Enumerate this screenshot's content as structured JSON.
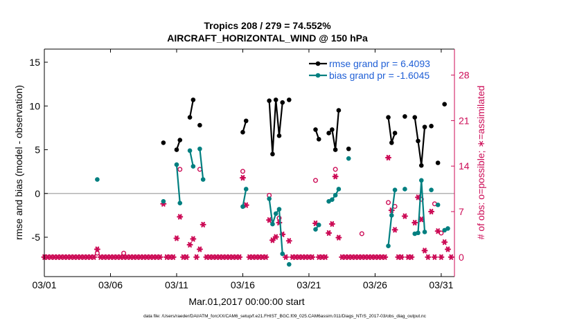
{
  "chart_data": {
    "type": "line",
    "title": "Tropics 208 / 279 = 74.552%",
    "subtitle": "AIRCRAFT_HORIZONTAL_WIND @ 150 hPa",
    "xlabel": "Mar.01,2017 00:00:00 start",
    "ylabel": "rmse and bias (model - observation)",
    "y2label": "# of obs: o=possible; ∗=assimilated",
    "footer": "data file: /Users/raeder/DAI/ATM_forcXX/CAM6_setup/f.e21.FHIST_BGC.f09_025.CAM6assim.011/Diags_NTrS_2017-03/obs_diag_output.nc",
    "xlim": [
      1,
      32
    ],
    "ylim": [
      -9.5,
      16.5
    ],
    "y2lim": [
      -3,
      32
    ],
    "grid": false,
    "legend_position": "top-right",
    "x_ticks": [
      {
        "value": 1,
        "label": "03/01"
      },
      {
        "value": 6,
        "label": "03/06"
      },
      {
        "value": 11,
        "label": "03/11"
      },
      {
        "value": 16,
        "label": "03/16"
      },
      {
        "value": 21,
        "label": "03/21"
      },
      {
        "value": 26,
        "label": "03/26"
      },
      {
        "value": 31,
        "label": "03/31"
      }
    ],
    "y_ticks": [
      {
        "value": 15,
        "label": "15"
      },
      {
        "value": 10,
        "label": "10"
      },
      {
        "value": 5,
        "label": "5"
      },
      {
        "value": 0,
        "label": "0"
      },
      {
        "value": -5,
        "label": "-5"
      }
    ],
    "y2_ticks": [
      {
        "value": 28,
        "label": "28"
      },
      {
        "value": 21,
        "label": "21"
      },
      {
        "value": 14,
        "label": "14"
      },
      {
        "value": 7,
        "label": "7"
      },
      {
        "value": 0,
        "label": "0"
      }
    ],
    "colors": {
      "rmse": "#000000",
      "bias": "#007f80",
      "obs": "#cc0a55",
      "zero_line": "#b3b3b3",
      "legend_text": "#1f5fd6"
    },
    "series": [
      {
        "name": "rmse grand pr = 6.4093",
        "axis": "left",
        "segments": [
          [
            [
              10.0,
              5.8
            ]
          ],
          [
            [
              11.0,
              5.0
            ],
            [
              11.25,
              6.1
            ]
          ],
          [
            [
              12.0,
              8.7
            ],
            [
              12.25,
              10.7
            ]
          ],
          [
            [
              12.75,
              7.8
            ]
          ],
          [
            [
              16.0,
              7.0
            ],
            [
              16.25,
              8.3
            ]
          ],
          [
            [
              18.0,
              10.6
            ],
            [
              18.25,
              4.5
            ],
            [
              18.5,
              10.7
            ],
            [
              18.75,
              6.6
            ],
            [
              19.0,
              10.4
            ]
          ],
          [
            [
              19.5,
              10.7
            ]
          ],
          [
            [
              21.5,
              7.3
            ],
            [
              21.75,
              6.2
            ]
          ],
          [
            [
              22.5,
              6.9
            ],
            [
              22.75,
              7.3
            ],
            [
              23.0,
              5.0
            ],
            [
              23.25,
              9.5
            ]
          ],
          [
            [
              24.0,
              5.1
            ]
          ],
          [
            [
              27.0,
              8.7
            ],
            [
              27.25,
              5.8
            ],
            [
              27.5,
              6.9
            ]
          ],
          [
            [
              28.25,
              8.8
            ]
          ],
          [
            [
              29.0,
              8.7
            ],
            [
              29.25,
              6.0
            ],
            [
              29.5,
              3.2
            ],
            [
              29.75,
              7.6
            ]
          ],
          [
            [
              30.25,
              7.7
            ]
          ],
          [
            [
              30.75,
              3.5
            ]
          ],
          [
            [
              31.25,
              10.2
            ]
          ]
        ]
      },
      {
        "name": "bias grand pr = -1.6045",
        "axis": "left",
        "segments": [
          [
            [
              5.0,
              1.6
            ]
          ],
          [
            [
              10.0,
              -0.9
            ]
          ],
          [
            [
              11.0,
              3.3
            ],
            [
              11.25,
              -1.1
            ]
          ],
          [
            [
              12.0,
              4.9
            ],
            [
              12.25,
              3.1
            ]
          ],
          [
            [
              12.75,
              5.1
            ],
            [
              13.0,
              1.6
            ]
          ],
          [
            [
              16.0,
              -1.5
            ],
            [
              16.25,
              0.5
            ]
          ],
          [
            [
              18.0,
              -0.6
            ],
            [
              18.25,
              -3.5
            ],
            [
              18.5,
              -2.3
            ],
            [
              18.75,
              -1.8
            ],
            [
              19.0,
              -6.9
            ]
          ],
          [
            [
              19.5,
              -8.1
            ]
          ],
          [
            [
              21.5,
              -4.1
            ],
            [
              21.75,
              -3.6
            ]
          ],
          [
            [
              22.5,
              -0.9
            ],
            [
              22.75,
              -0.7
            ],
            [
              23.0,
              -0.2
            ],
            [
              23.25,
              0.5
            ]
          ],
          [
            [
              24.0,
              4.0
            ]
          ],
          [
            [
              27.0,
              -6.0
            ],
            [
              27.25,
              -2.5
            ],
            [
              27.5,
              0.4
            ]
          ],
          [
            [
              28.25,
              0.5
            ]
          ],
          [
            [
              29.0,
              -4.6
            ],
            [
              29.25,
              -4.5
            ],
            [
              29.5,
              1.5
            ],
            [
              29.75,
              -4.4
            ]
          ],
          [
            [
              30.25,
              0.4
            ]
          ],
          [
            [
              30.75,
              -1.3
            ]
          ],
          [
            [
              31.25,
              -4.2
            ],
            [
              31.5,
              -4.0
            ]
          ]
        ]
      },
      {
        "name": "possible",
        "axis": "right",
        "marker": "o",
        "points": [
          [
            5.0,
            0.6
          ],
          [
            7.0,
            0.6
          ],
          [
            11.25,
            13.5
          ],
          [
            12.75,
            13.5
          ],
          [
            16.0,
            13.2
          ],
          [
            18.0,
            9.5
          ],
          [
            18.75,
            6.0
          ],
          [
            21.5,
            11.8
          ],
          [
            23.0,
            13.5
          ],
          [
            25.0,
            3.6
          ],
          [
            27.0,
            8.4
          ],
          [
            27.5,
            7.8
          ],
          [
            29.5,
            8.9
          ],
          [
            30.5,
            8.2
          ],
          [
            31.0,
            3.7
          ]
        ],
        "values_note": "0 elsewhere"
      },
      {
        "name": "assimilated",
        "axis": "right",
        "marker": "*",
        "points": [
          [
            5.0,
            1.2
          ],
          [
            10.0,
            8.2
          ],
          [
            11.0,
            2.9
          ],
          [
            11.25,
            6.2
          ],
          [
            12.0,
            1.9
          ],
          [
            12.25,
            2.8
          ],
          [
            12.75,
            1.2
          ],
          [
            13.0,
            5.0
          ],
          [
            16.0,
            12.2
          ],
          [
            16.25,
            8.0
          ],
          [
            18.0,
            5.7
          ],
          [
            18.25,
            2.6
          ],
          [
            18.5,
            3.1
          ],
          [
            18.75,
            5.3
          ],
          [
            19.0,
            3.5
          ],
          [
            19.5,
            2.5
          ],
          [
            21.5,
            5.2
          ],
          [
            22.5,
            3.7
          ],
          [
            22.75,
            5.1
          ],
          [
            23.0,
            12.4
          ],
          [
            23.25,
            3.0
          ],
          [
            27.0,
            15.3
          ],
          [
            27.25,
            7.2
          ],
          [
            27.5,
            4.2
          ],
          [
            28.25,
            6.3
          ],
          [
            29.0,
            5.3
          ],
          [
            29.25,
            9.2
          ],
          [
            29.5,
            5.8
          ],
          [
            29.75,
            1.0
          ],
          [
            30.25,
            7.0
          ],
          [
            30.75,
            4.0
          ],
          [
            31.25,
            2.3
          ],
          [
            31.5,
            1.2
          ],
          [
            31.75,
            0.0
          ]
        ],
        "baseline": 0
      }
    ]
  }
}
